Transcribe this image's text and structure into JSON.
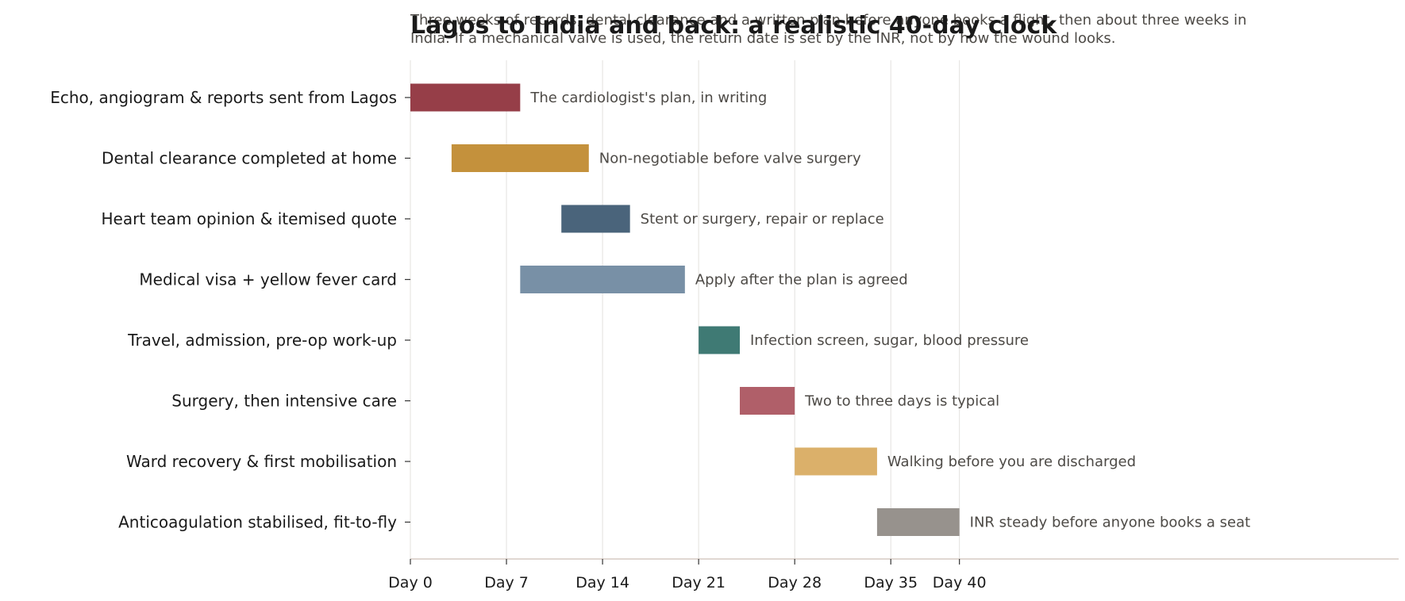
{
  "chart_data": {
    "type": "gantt",
    "title": "Lagos to India and back: a realistic 40-day clock",
    "subtitle_lines": [
      "Three weeks of records, dental clearance and a written plan before anyone books a flight, then about three weeks in",
      "India. If a mechanical valve is used, the return date is set by the INR, not by how the wound looks."
    ],
    "xlim": [
      0,
      72
    ],
    "x_ticks": [
      {
        "value": 0,
        "label": "Day 0"
      },
      {
        "value": 7,
        "label": "Day 7"
      },
      {
        "value": 14,
        "label": "Day 14"
      },
      {
        "value": 21,
        "label": "Day 21"
      },
      {
        "value": 28,
        "label": "Day 28"
      },
      {
        "value": 35,
        "label": "Day 35"
      },
      {
        "value": 40,
        "label": "Day 40"
      }
    ],
    "grid": "vertical",
    "tasks": [
      {
        "label": "Echo, angiogram & reports sent from Lagos",
        "start": 0,
        "end": 8,
        "note": "The cardiologist's plan, in writing",
        "color": "#963e48"
      },
      {
        "label": "Dental clearance completed at home",
        "start": 3,
        "end": 13,
        "note": "Non-negotiable before valve surgery",
        "color": "#c4913c"
      },
      {
        "label": "Heart team opinion & itemised quote",
        "start": 11,
        "end": 16,
        "note": "Stent or surgery, repair or replace",
        "color": "#4a647b"
      },
      {
        "label": "Medical visa + yellow fever card",
        "start": 8,
        "end": 20,
        "note": "Apply after the plan is agreed",
        "color": "#7890a6"
      },
      {
        "label": "Travel, admission, pre-op work-up",
        "start": 21,
        "end": 24,
        "note": "Infection screen, sugar, blood pressure",
        "color": "#3f7a74"
      },
      {
        "label": "Surgery, then intensive care",
        "start": 24,
        "end": 28,
        "note": "Two to three days is typical",
        "color": "#b05f69"
      },
      {
        "label": "Ward recovery & first mobilisation",
        "start": 28,
        "end": 34,
        "note": "Walking before you are discharged",
        "color": "#dbb06a"
      },
      {
        "label": "Anticoagulation stabilised, fit-to-fly",
        "start": 34,
        "end": 40,
        "note": "INR steady before anyone books a seat",
        "color": "#97928d"
      }
    ]
  }
}
